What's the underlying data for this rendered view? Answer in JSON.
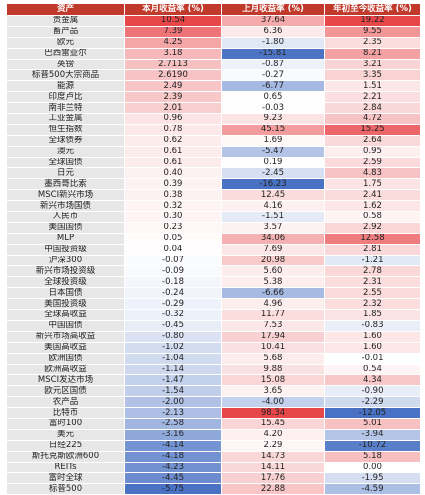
{
  "table": {
    "headers": [
      "资产",
      "本月收益率 (%)",
      "上月收益率 (%)",
      "年初至今收益率 (%)"
    ],
    "rows": [
      [
        "贵金属",
        "10.54",
        "37.64",
        "19.22"
      ],
      [
        "畜产品",
        "7.39",
        "6.36",
        "9.55"
      ],
      [
        "欧元",
        "4.25",
        "-1.80",
        "2.35"
      ],
      [
        "巴西雷亚尔",
        "3.18",
        "-15.81",
        "8.21"
      ],
      [
        "英镑",
        "2.7113",
        "-0.87",
        "3.21"
      ],
      [
        "标普500大宗商品",
        "2.6190",
        "-0.27",
        "3.35"
      ],
      [
        "能源",
        "2.49",
        "-6.77",
        "1.51"
      ],
      [
        "印度卢比",
        "2.39",
        "0.65",
        "2.21"
      ],
      [
        "南非兰特",
        "2.01",
        "-0.03",
        "2.84"
      ],
      [
        "工业金属",
        "0.96",
        "9.23",
        "4.72"
      ],
      [
        "恒生指数",
        "0.78",
        "45.15",
        "15.25"
      ],
      [
        "全球债券",
        "0.62",
        "1.69",
        "2.64"
      ],
      [
        "澳元",
        "0.61",
        "-5.47",
        "0.95"
      ],
      [
        "全球国债",
        "0.61",
        "0.19",
        "2.59"
      ],
      [
        "日元",
        "0.40",
        "-2.45",
        "4.83"
      ],
      [
        "墨西哥比索",
        "0.39",
        "-16.23",
        "1.75"
      ],
      [
        "MSCI新兴市场",
        "0.38",
        "12.45",
        "2.41"
      ],
      [
        "新兴市场国债",
        "0.32",
        "4.16",
        "1.62"
      ],
      [
        "人民币",
        "0.30",
        "-1.51",
        "0.58"
      ],
      [
        "美国国债",
        "0.23",
        "3.57",
        "2.92"
      ],
      [
        "MLP",
        "0.05",
        "34.06",
        "12.58"
      ],
      [
        "中国投资级",
        "0.04",
        "7.69",
        "2.81"
      ],
      [
        "沪深300",
        "-0.07",
        "20.98",
        "-1.21"
      ],
      [
        "新兴市场投资级",
        "-0.09",
        "5.60",
        "2.78"
      ],
      [
        "全球投资级",
        "-0.18",
        "5.38",
        "2.31"
      ],
      [
        "日本国债",
        "-0.24",
        "-6.66",
        "2.55"
      ],
      [
        "美国投资级",
        "-0.29",
        "4.96",
        "2.32"
      ],
      [
        "全球高收益",
        "-0.32",
        "11.77",
        "1.85"
      ],
      [
        "中国国债",
        "-0.45",
        "7.53",
        "-0.83"
      ],
      [
        "新兴市场高收益",
        "-0.80",
        "17.94",
        "1.60"
      ],
      [
        "美国高收益",
        "-1.02",
        "10.41",
        "1.60"
      ],
      [
        "欧洲国债",
        "-1.04",
        "5.68",
        "-0.01"
      ],
      [
        "欧洲高收益",
        "-1.14",
        "9.88",
        "0.54"
      ],
      [
        "MSCI发达市场",
        "-1.47",
        "15.08",
        "4.34"
      ],
      [
        "欧元区国债",
        "-1.54",
        "3.65",
        "-0.90"
      ],
      [
        "农产品",
        "-2.00",
        "-4.00",
        "-2.29"
      ],
      [
        "比特币",
        "-2.13",
        "98.34",
        "-12.05"
      ],
      [
        "富时100",
        "-2.58",
        "15.45",
        "5.01"
      ],
      [
        "美元",
        "-3.16",
        "4.20",
        "-3.94"
      ],
      [
        "日经225",
        "-4.14",
        "2.29",
        "-10.72"
      ],
      [
        "斯托克斯欧洲600",
        "-4.18",
        "14.73",
        "5.18"
      ],
      [
        "REITs",
        "-4.23",
        "14.11",
        "0.00"
      ],
      [
        "富时全球",
        "-4.45",
        "17.76",
        "-1.95"
      ],
      [
        "标普500",
        "-5.75",
        "22.88",
        "-4.59"
      ]
    ]
  },
  "colors": {
    "header_bg": "#c0392b",
    "header_text": "#ffffff",
    "name_bg": "#e7e7e7",
    "positive": "#e8474a",
    "negative": "#4a72c4",
    "neutral": "#ffffff"
  }
}
